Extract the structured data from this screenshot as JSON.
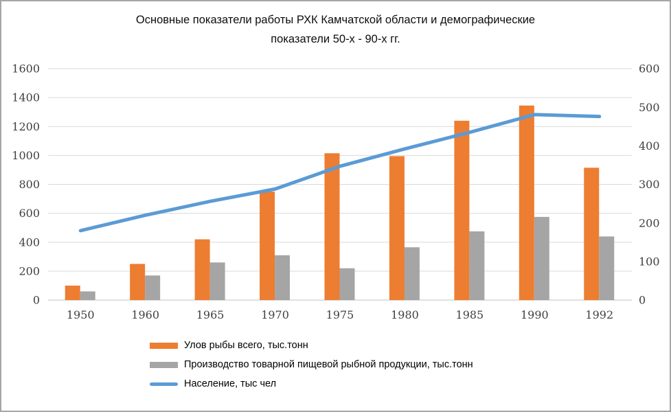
{
  "window": {
    "background": "#ffffff",
    "border_color": "#a6a6a6"
  },
  "chart_data": {
    "type": "combo",
    "title": "Основные показатели работы РХК Камчатской области и демографические показатели 50-х - 90-х гг.",
    "title_lines": [
      "Основные показатели работы РХК Камчатской области и демографические",
      "показатели 50-х - 90-х гг."
    ],
    "categories": [
      "1950",
      "1960",
      "1965",
      "1970",
      "1975",
      "1980",
      "1985",
      "1990",
      "1992"
    ],
    "series": [
      {
        "name": "Улов рыбы всего, тыс.тонн",
        "type": "bar",
        "axis": "left",
        "color": "#ED7D31",
        "values": [
          100,
          250,
          420,
          750,
          1015,
          995,
          1240,
          1345,
          915
        ]
      },
      {
        "name": "Производство товарной пищевой рыбной продукции, тыс.тонн",
        "type": "bar",
        "axis": "left",
        "color": "#A5A5A5",
        "values": [
          60,
          170,
          260,
          310,
          220,
          365,
          475,
          575,
          440
        ]
      },
      {
        "name": "Население, тыс чел",
        "type": "line",
        "axis": "right",
        "color": "#5B9BD5",
        "values": [
          180,
          220,
          256,
          288,
          347,
          392,
          435,
          481,
          476
        ]
      }
    ],
    "left_axis": {
      "min": 0,
      "max": 1600,
      "step": 200
    },
    "right_axis": {
      "min": 0,
      "max": 600,
      "step": 100
    },
    "grid": true,
    "legend_position": "bottom-left",
    "gridline_color": "#D9D9D9",
    "baseline_color": "#C0C0C0",
    "axis_label_color": "#404040"
  }
}
